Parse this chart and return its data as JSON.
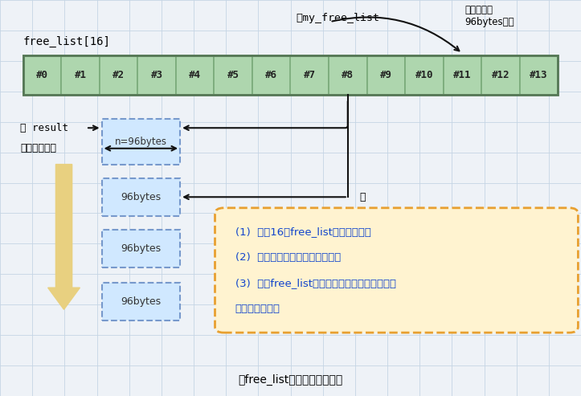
{
  "bg_color": "#eef2f7",
  "grid_color": "#c5d5e5",
  "title_bottom": "从free_list调出可用区块内存",
  "free_list_label": "free_list[16]",
  "array_cells": [
    "#0",
    "#1",
    "#2",
    "#3",
    "#4",
    "#5",
    "#6",
    "#7",
    "#8",
    "#9",
    "#10",
    "#11",
    "#12",
    "#13"
  ],
  "array_fill": "#aed6ae",
  "array_stroke": "#7aaa7a",
  "note1_text": "①my_free_list",
  "note2_line1": "此节点负责",
  "note2_line2": "96bytes区块",
  "block_fill": "#d0e8ff",
  "block_stroke": "#7799cc",
  "block_label": "n=96bytes",
  "result_text": "② result",
  "call_text": "调出这个区块",
  "cell96_label": "96bytes",
  "annotation_fill": "#fff3d0",
  "annotation_stroke": "#e8a030",
  "annotation_line1": "(1)  寻找16个free_list中适当的一个",
  "annotation_line2": "(2)  记录此时找到的区块开始位置",
  "annotation_line3": "(3)  跳转free_list使上一步调出的内存的下一个",
  "annotation_line4": "节点变为头节点",
  "arrow_color": "#111111",
  "highlight_color": "#1144cc",
  "yellow_arrow_color": "#e8d080",
  "circle3_text": "③"
}
